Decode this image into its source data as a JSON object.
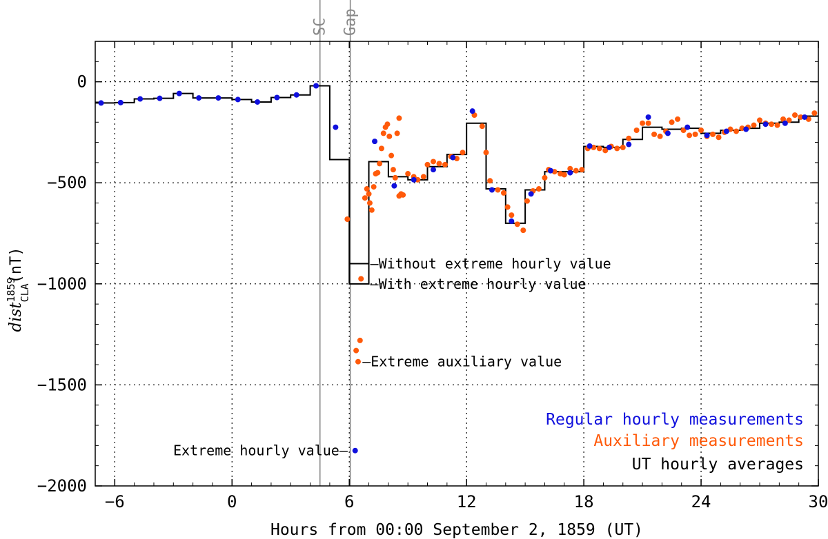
{
  "chart_data": {
    "type": "scatter",
    "xlabel": "Hours from 00:00 September 2, 1859 (UT)",
    "ylabel_main": "dist",
    "ylabel_sup": "1859",
    "ylabel_sub": "CLA",
    "ylabel_unit": "(nT)",
    "xlim": [
      -7,
      30
    ],
    "ylim": [
      -2000,
      200
    ],
    "x_ticks": [
      -6,
      0,
      6,
      12,
      18,
      24,
      30
    ],
    "x_tick_labels": [
      "−6",
      "0",
      "6",
      "12",
      "18",
      "24",
      "30"
    ],
    "y_ticks": [
      -2000,
      -1500,
      -1000,
      -500,
      0
    ],
    "y_tick_labels": [
      "−2000",
      "−1500",
      "−1000",
      "−500",
      "0"
    ],
    "grid": "dotted",
    "vlines": [
      {
        "x": 4.5,
        "label": "SC"
      },
      {
        "x": 6.05,
        "label": "Gap"
      }
    ],
    "colors": {
      "regular": "#1010dd",
      "auxiliary": "#ff5a0a",
      "averages": "#000000",
      "vline": "#888888"
    },
    "series": [
      {
        "name": "Regular hourly measurements",
        "points": [
          [
            -6.7,
            -105
          ],
          [
            -5.7,
            -103
          ],
          [
            -4.7,
            -85
          ],
          [
            -3.7,
            -82
          ],
          [
            -2.7,
            -58
          ],
          [
            -1.7,
            -80
          ],
          [
            -0.7,
            -80
          ],
          [
            0.3,
            -88
          ],
          [
            1.3,
            -100
          ],
          [
            2.3,
            -78
          ],
          [
            3.3,
            -65
          ],
          [
            4.3,
            -20
          ],
          [
            5.3,
            -225
          ],
          [
            6.3,
            -1825
          ],
          [
            7.3,
            -295
          ],
          [
            8.3,
            -515
          ],
          [
            9.3,
            -485
          ],
          [
            10.3,
            -435
          ],
          [
            11.3,
            -375
          ],
          [
            12.3,
            -145
          ],
          [
            13.3,
            -535
          ],
          [
            14.3,
            -690
          ],
          [
            15.3,
            -555
          ],
          [
            16.3,
            -440
          ],
          [
            17.3,
            -450
          ],
          [
            18.3,
            -318
          ],
          [
            19.3,
            -325
          ],
          [
            20.3,
            -310
          ],
          [
            21.3,
            -175
          ],
          [
            22.3,
            -255
          ],
          [
            23.3,
            -225
          ],
          [
            24.3,
            -265
          ],
          [
            25.3,
            -245
          ],
          [
            26.3,
            -235
          ],
          [
            27.3,
            -210
          ],
          [
            28.3,
            -205
          ],
          [
            29.3,
            -175
          ]
        ]
      },
      {
        "name": "Auxiliary measurements",
        "points": [
          [
            5.9,
            -680
          ],
          [
            6.6,
            -975
          ],
          [
            6.35,
            -1330
          ],
          [
            6.55,
            -1280
          ],
          [
            6.45,
            -1385
          ],
          [
            6.8,
            -575
          ],
          [
            6.9,
            -530
          ],
          [
            7.0,
            -555
          ],
          [
            7.05,
            -600
          ],
          [
            7.15,
            -635
          ],
          [
            7.25,
            -520
          ],
          [
            7.35,
            -455
          ],
          [
            7.45,
            -450
          ],
          [
            7.55,
            -405
          ],
          [
            7.65,
            -330
          ],
          [
            7.75,
            -255
          ],
          [
            7.85,
            -225
          ],
          [
            7.95,
            -210
          ],
          [
            8.05,
            -270
          ],
          [
            8.15,
            -365
          ],
          [
            8.25,
            -435
          ],
          [
            8.35,
            -475
          ],
          [
            8.45,
            -255
          ],
          [
            8.55,
            -565
          ],
          [
            8.65,
            -555
          ],
          [
            8.75,
            -560
          ],
          [
            8.55,
            -180
          ],
          [
            9.0,
            -455
          ],
          [
            9.3,
            -470
          ],
          [
            9.5,
            -485
          ],
          [
            9.8,
            -470
          ],
          [
            10.0,
            -410
          ],
          [
            10.3,
            -395
          ],
          [
            10.6,
            -405
          ],
          [
            10.9,
            -410
          ],
          [
            11.2,
            -370
          ],
          [
            11.5,
            -380
          ],
          [
            11.8,
            -350
          ],
          [
            12.4,
            -165
          ],
          [
            12.8,
            -220
          ],
          [
            13.0,
            -350
          ],
          [
            13.2,
            -490
          ],
          [
            13.6,
            -535
          ],
          [
            13.9,
            -550
          ],
          [
            14.1,
            -620
          ],
          [
            14.3,
            -660
          ],
          [
            14.6,
            -705
          ],
          [
            14.9,
            -735
          ],
          [
            15.1,
            -590
          ],
          [
            15.4,
            -540
          ],
          [
            15.7,
            -530
          ],
          [
            16.0,
            -475
          ],
          [
            16.2,
            -435
          ],
          [
            16.5,
            -445
          ],
          [
            16.8,
            -455
          ],
          [
            17.0,
            -460
          ],
          [
            17.3,
            -430
          ],
          [
            17.6,
            -440
          ],
          [
            17.9,
            -435
          ],
          [
            18.2,
            -330
          ],
          [
            18.5,
            -325
          ],
          [
            18.8,
            -330
          ],
          [
            19.1,
            -340
          ],
          [
            19.4,
            -320
          ],
          [
            19.7,
            -330
          ],
          [
            20.0,
            -325
          ],
          [
            20.3,
            -280
          ],
          [
            20.7,
            -240
          ],
          [
            21.0,
            -205
          ],
          [
            21.3,
            -205
          ],
          [
            21.6,
            -260
          ],
          [
            21.9,
            -270
          ],
          [
            22.2,
            -245
          ],
          [
            22.5,
            -200
          ],
          [
            22.8,
            -185
          ],
          [
            23.1,
            -240
          ],
          [
            23.4,
            -265
          ],
          [
            23.7,
            -260
          ],
          [
            24.0,
            -240
          ],
          [
            24.3,
            -270
          ],
          [
            24.6,
            -260
          ],
          [
            24.9,
            -275
          ],
          [
            25.2,
            -250
          ],
          [
            25.5,
            -235
          ],
          [
            25.8,
            -245
          ],
          [
            26.1,
            -230
          ],
          [
            26.4,
            -225
          ],
          [
            26.7,
            -215
          ],
          [
            27.0,
            -190
          ],
          [
            27.3,
            -205
          ],
          [
            27.6,
            -210
          ],
          [
            27.9,
            -215
          ],
          [
            28.2,
            -185
          ],
          [
            28.5,
            -190
          ],
          [
            28.8,
            -165
          ],
          [
            29.1,
            -175
          ],
          [
            29.5,
            -185
          ],
          [
            29.8,
            -155
          ]
        ]
      },
      {
        "name": "UT hourly averages",
        "steps": [
          [
            -7,
            -105
          ],
          [
            -6,
            -103
          ],
          [
            -5,
            -85
          ],
          [
            -4,
            -82
          ],
          [
            -3,
            -58
          ],
          [
            -2,
            -80
          ],
          [
            -1,
            -80
          ],
          [
            0,
            -88
          ],
          [
            1,
            -100
          ],
          [
            2,
            -78
          ],
          [
            3,
            -65
          ],
          [
            4,
            -20
          ],
          [
            5,
            -385
          ],
          [
            6,
            -1000
          ],
          [
            7,
            -395
          ],
          [
            8,
            -470
          ],
          [
            9,
            -485
          ],
          [
            10,
            -420
          ],
          [
            11,
            -360
          ],
          [
            12,
            -205
          ],
          [
            13,
            -530
          ],
          [
            14,
            -700
          ],
          [
            15,
            -535
          ],
          [
            16,
            -445
          ],
          [
            17,
            -445
          ],
          [
            18,
            -320
          ],
          [
            19,
            -325
          ],
          [
            20,
            -285
          ],
          [
            21,
            -225
          ],
          [
            22,
            -235
          ],
          [
            23,
            -230
          ],
          [
            24,
            -255
          ],
          [
            25,
            -240
          ],
          [
            26,
            -230
          ],
          [
            27,
            -205
          ],
          [
            28,
            -200
          ],
          [
            29,
            -170
          ]
        ],
        "alt_segment": {
          "x0": 6,
          "x1": 7,
          "y": -900
        }
      }
    ],
    "legend": {
      "placement": "bottom-right",
      "entries": [
        "Regular hourly measurements",
        "Auxiliary measurements",
        "UT hourly averages"
      ]
    },
    "annotations": [
      {
        "text": "—Without extreme hourly value",
        "x": 7,
        "y": -900
      },
      {
        "text": "—With extreme hourly value",
        "x": 7,
        "y": -1000
      },
      {
        "text": "—Extreme auxiliary value",
        "x": 6.6,
        "y": -1385
      },
      {
        "text": "Extreme hourly value—",
        "x": 6.2,
        "y": -1825
      }
    ]
  }
}
